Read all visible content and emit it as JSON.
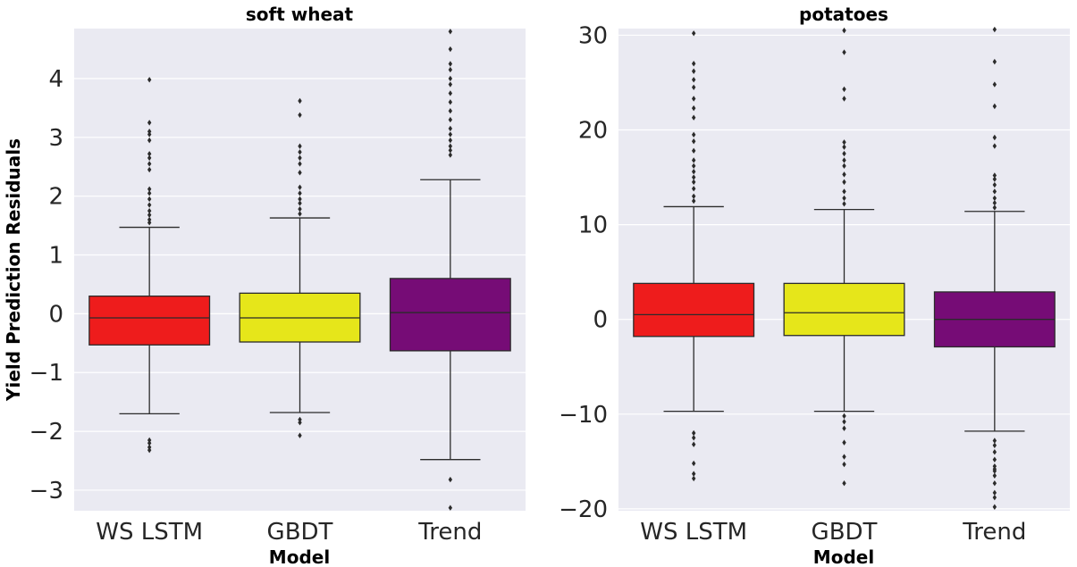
{
  "figure": {
    "ylabel": "Yield Prediction Residuals"
  },
  "colors": {
    "panel_bg": "#eaeaf2",
    "grid": "#ffffff",
    "line": "#2b2b2b",
    "WS LSTM": "#ee1c1c",
    "GBDT": "#e6e61a",
    "Trend": "#760c76"
  },
  "chart_data": [
    {
      "type": "box",
      "title": "soft wheat",
      "xlabel": "Model",
      "ylabel": "Yield Prediction Residuals",
      "categories": [
        "WS LSTM",
        "GBDT",
        "Trend"
      ],
      "ylim": [
        -3.35,
        4.85
      ],
      "yticks": [
        -3,
        -2,
        -1,
        0,
        1,
        2,
        3,
        4
      ],
      "grid": true,
      "boxes": [
        {
          "name": "WS LSTM",
          "whislo": -1.7,
          "q1": -0.53,
          "med": -0.07,
          "q3": 0.3,
          "whishi": 1.47,
          "fliers": [
            -2.15,
            -2.2,
            -2.27,
            -2.32,
            1.55,
            1.6,
            1.68,
            1.75,
            1.85,
            1.95,
            2.05,
            2.12,
            2.45,
            2.55,
            2.65,
            2.72,
            2.95,
            3.05,
            3.1,
            3.25,
            3.98
          ]
        },
        {
          "name": "GBDT",
          "whislo": -1.68,
          "q1": -0.48,
          "med": -0.07,
          "q3": 0.35,
          "whishi": 1.63,
          "fliers": [
            -1.8,
            -1.85,
            -2.07,
            1.7,
            1.78,
            1.88,
            1.95,
            2.05,
            2.15,
            2.4,
            2.55,
            2.65,
            2.75,
            2.85,
            3.38,
            3.62
          ]
        },
        {
          "name": "Trend",
          "whislo": -2.48,
          "q1": -0.63,
          "med": 0.02,
          "q3": 0.6,
          "whishi": 2.28,
          "fliers": [
            -2.82,
            -3.3,
            2.7,
            2.78,
            2.85,
            2.95,
            3.05,
            3.15,
            3.3,
            3.45,
            3.6,
            3.75,
            3.9,
            4.0,
            4.15,
            4.25,
            4.5,
            4.8
          ]
        }
      ]
    },
    {
      "type": "box",
      "title": "potatoes",
      "xlabel": "Model",
      "ylabel": "",
      "categories": [
        "WS LSTM",
        "GBDT",
        "Trend"
      ],
      "ylim": [
        -20.2,
        30.7
      ],
      "yticks": [
        -20,
        -10,
        0,
        10,
        20,
        30
      ],
      "grid": true,
      "boxes": [
        {
          "name": "WS LSTM",
          "whislo": -9.7,
          "q1": -1.8,
          "med": 0.5,
          "q3": 3.8,
          "whishi": 11.9,
          "fliers": [
            -12.0,
            -12.5,
            -13.2,
            -15.2,
            -16.3,
            -16.8,
            12.5,
            13.0,
            13.8,
            14.5,
            15.0,
            15.6,
            16.2,
            16.8,
            17.8,
            18.8,
            19.5,
            21.3,
            22.3,
            23.3,
            24.5,
            25.3,
            26.2,
            27.0,
            30.2
          ]
        },
        {
          "name": "GBDT",
          "whislo": -9.7,
          "q1": -1.7,
          "med": 0.7,
          "q3": 3.8,
          "whishi": 11.6,
          "fliers": [
            -10.2,
            -10.8,
            -11.5,
            -13.0,
            -14.5,
            -15.3,
            -17.3,
            12.2,
            12.8,
            13.5,
            14.5,
            15.3,
            16.2,
            16.8,
            17.5,
            18.2,
            18.7,
            23.3,
            24.3,
            28.2,
            30.5
          ]
        },
        {
          "name": "Trend",
          "whislo": -11.8,
          "q1": -2.9,
          "med": 0.0,
          "q3": 2.9,
          "whishi": 11.4,
          "fliers": [
            -12.8,
            -13.3,
            -14.0,
            -14.8,
            -15.5,
            -15.8,
            -16.0,
            -16.5,
            -17.3,
            -18.3,
            -18.8,
            -19.8,
            11.8,
            12.3,
            12.8,
            13.5,
            14.2,
            14.8,
            15.2,
            18.3,
            19.2,
            22.5,
            24.8,
            27.2,
            30.6
          ]
        }
      ]
    }
  ]
}
